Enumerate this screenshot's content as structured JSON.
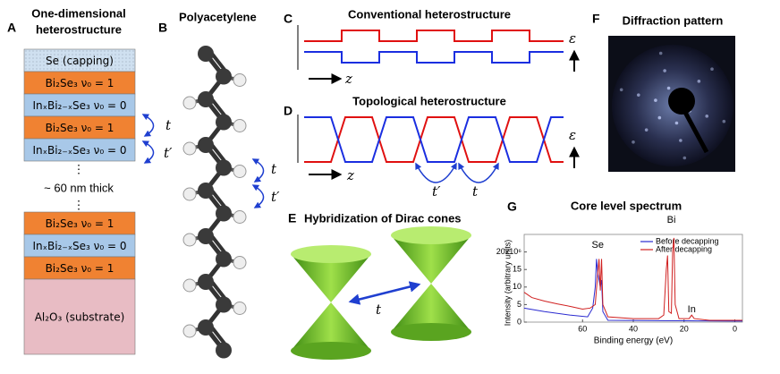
{
  "panels": {
    "A": {
      "letter": "A",
      "title": [
        "One-dimensional",
        "heterostructure"
      ],
      "layers": [
        "Se (capping)",
        "Bi₂Se₃  ν₀ = 1",
        "InₓBi₂₋ₓSe₃  ν₀ = 0",
        "Bi₂Se₃  ν₀ = 1",
        "InₓBi₂₋ₓSe₃  ν₀ = 0"
      ],
      "dots": "⋮",
      "thickness": "~ 60 nm thick",
      "bottom_layers": [
        "Bi₂Se₃  ν₀ = 1",
        "InₓBi₂₋ₓSe₃  ν₀ = 0",
        "Bi₂Se₃  ν₀ = 1",
        "Al₂O₃ (substrate)"
      ],
      "hoppings": [
        "t",
        "t′"
      ]
    },
    "B": {
      "letter": "B",
      "title": "Polyacetylene",
      "hoppings": [
        "t",
        "t′"
      ]
    },
    "C": {
      "letter": "C",
      "title": "Conventional heterostructure",
      "axis": "z",
      "energy": "ε"
    },
    "D": {
      "letter": "D",
      "title": "Topological heterostructure",
      "axis": "z",
      "energy": "ε",
      "hoppings": [
        "t′",
        "t"
      ]
    },
    "E": {
      "letter": "E",
      "title": "Hybridization of Dirac cones",
      "hopping": "t"
    },
    "F": {
      "letter": "F",
      "title": "Diffraction pattern"
    },
    "G": {
      "letter": "G",
      "title": "Core level spectrum",
      "xlabel": "Binding energy (eV)",
      "ylabel": "Intensity (arbitrary units)",
      "xlim": [
        83,
        -3
      ],
      "ylim": [
        0,
        25
      ],
      "xticks": [
        60,
        40,
        20,
        0
      ],
      "yticks": [
        0,
        5,
        10,
        15,
        {
          "value": 20,
          "label": "20x10⁶"
        }
      ],
      "peaks": [
        {
          "label": "Se",
          "x": 54
        },
        {
          "label": "Bi",
          "x": 25
        },
        {
          "label": "In",
          "x": 17
        }
      ],
      "series": [
        {
          "name": "Before decapping",
          "color": "#2a2ad0",
          "x": [
            83,
            75,
            65,
            58,
            56,
            55,
            54.5,
            54,
            53,
            52.5,
            52,
            50,
            30,
            0,
            -3
          ],
          "y": [
            4,
            3,
            2,
            1.5,
            4,
            10,
            18,
            14,
            10,
            12,
            3,
            0.5,
            0.4,
            0.3,
            0.3
          ]
        },
        {
          "name": "After decapping",
          "color": "#d02020",
          "x": [
            83,
            80,
            75,
            70,
            65,
            60,
            57,
            55,
            54,
            53.5,
            53,
            52.5,
            52,
            50,
            40,
            30,
            28,
            27,
            26.5,
            26,
            25,
            24.5,
            24,
            23.5,
            22,
            18,
            17,
            16,
            10,
            0,
            -3
          ],
          "y": [
            8.5,
            7,
            6,
            5.2,
            4.5,
            3.7,
            4,
            5,
            14,
            18,
            9,
            18,
            5,
            1.5,
            1,
            1,
            2,
            15,
            19,
            3,
            2.5,
            20,
            24,
            5,
            1,
            1,
            2,
            1,
            0.5,
            0.5,
            0.5
          ]
        }
      ]
    }
  }
}
